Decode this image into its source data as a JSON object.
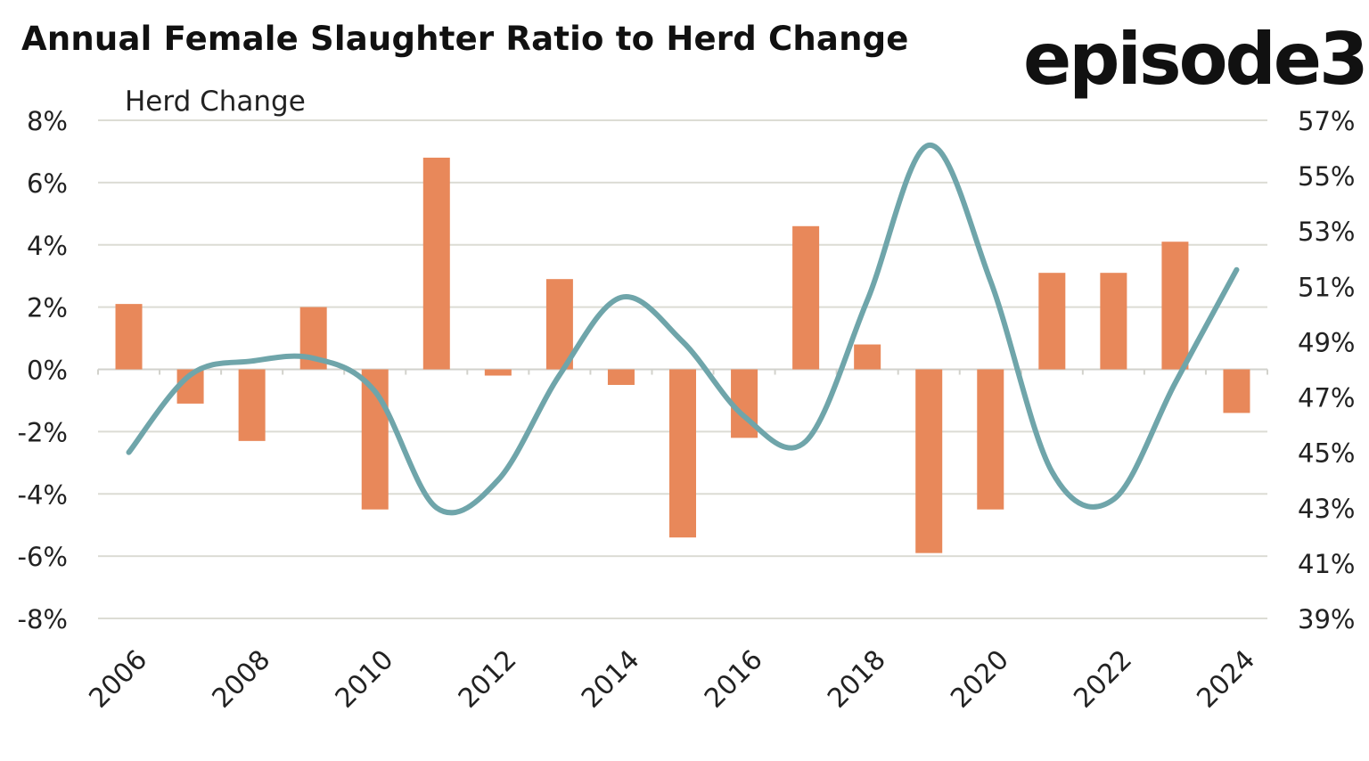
{
  "title": "Annual Female Slaughter Ratio to Herd Change",
  "brand": "episode3",
  "chart_data": {
    "type": "bar",
    "title": "Annual Female Slaughter Ratio to Herd Change",
    "ylabel": "Herd Change",
    "categories": [
      2006,
      2007,
      2008,
      2009,
      2010,
      2011,
      2012,
      2013,
      2014,
      2015,
      2016,
      2017,
      2018,
      2019,
      2020,
      2021,
      2022,
      2023,
      2024
    ],
    "x_tick_labels": [
      "2006",
      "2008",
      "2010",
      "2012",
      "2014",
      "2016",
      "2018",
      "2020",
      "2022",
      "2024"
    ],
    "series": [
      {
        "type": "bar",
        "axis": "left",
        "color": "#E8885A",
        "values": [
          2.1,
          -1.1,
          -2.3,
          2.0,
          -4.5,
          6.8,
          -0.2,
          2.9,
          -0.5,
          -5.4,
          -2.2,
          4.6,
          0.8,
          -5.9,
          -4.5,
          3.1,
          3.1,
          4.1,
          -1.4
        ]
      },
      {
        "type": "line",
        "axis": "right",
        "color": "#6FA5AA",
        "smooth": true,
        "values": [
          45.0,
          47.8,
          48.3,
          48.4,
          47.2,
          43.0,
          44.0,
          47.8,
          50.6,
          49.0,
          46.3,
          45.4,
          50.5,
          56.1,
          51.2,
          44.3,
          43.3,
          47.5,
          51.6
        ]
      }
    ],
    "y_left": {
      "min": -8,
      "max": 8,
      "step": 2,
      "tick_labels": [
        "8%",
        "6%",
        "4%",
        "2%",
        "0%",
        "-2%",
        "-4%",
        "-6%",
        "-8%"
      ]
    },
    "y_right": {
      "min": 39,
      "max": 57,
      "step": 2,
      "tick_labels": [
        "57%",
        "55%",
        "53%",
        "51%",
        "49%",
        "47%",
        "45%",
        "43%",
        "41%",
        "39%"
      ]
    },
    "grid": true,
    "legend": "none"
  }
}
